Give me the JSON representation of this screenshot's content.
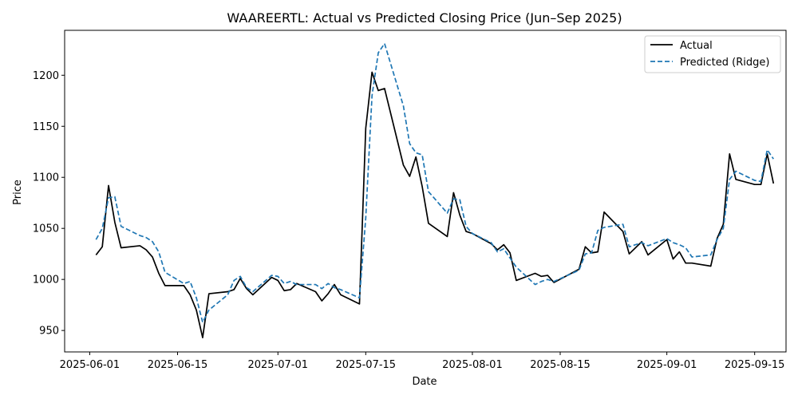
{
  "chart_data": {
    "type": "line",
    "title": "WAAREERTL: Actual vs Predicted Closing Price (Jun–Sep 2025)",
    "xlabel": "Date",
    "ylabel": "Price",
    "x_ticks": [
      "2025-06-01",
      "2025-06-15",
      "2025-07-01",
      "2025-07-15",
      "2025-08-01",
      "2025-08-15",
      "2025-09-01",
      "2025-09-15"
    ],
    "y_ticks": [
      950,
      1000,
      1050,
      1100,
      1150,
      1200
    ],
    "xlim": [
      "2025-05-28",
      "2025-09-20"
    ],
    "ylim": [
      929,
      1244
    ],
    "legend_position": "top-right",
    "grid": false,
    "series": [
      {
        "name": "Actual",
        "color": "#000000",
        "style": "solid",
        "points": [
          [
            "2025-06-02",
            1024
          ],
          [
            "2025-06-03",
            1032
          ],
          [
            "2025-06-04",
            1092
          ],
          [
            "2025-06-05",
            1056
          ],
          [
            "2025-06-06",
            1031
          ],
          [
            "2025-06-09",
            1033
          ],
          [
            "2025-06-10",
            1029
          ],
          [
            "2025-06-11",
            1022
          ],
          [
            "2025-06-12",
            1006
          ],
          [
            "2025-06-13",
            994
          ],
          [
            "2025-06-16",
            994
          ],
          [
            "2025-06-17",
            985
          ],
          [
            "2025-06-18",
            970
          ],
          [
            "2025-06-19",
            943
          ],
          [
            "2025-06-20",
            986
          ],
          [
            "2025-06-23",
            988
          ],
          [
            "2025-06-24",
            990
          ],
          [
            "2025-06-25",
            1001
          ],
          [
            "2025-06-26",
            991
          ],
          [
            "2025-06-27",
            985
          ],
          [
            "2025-06-30",
            1002
          ],
          [
            "2025-07-01",
            999
          ],
          [
            "2025-07-02",
            989
          ],
          [
            "2025-07-03",
            990
          ],
          [
            "2025-07-04",
            996
          ],
          [
            "2025-07-07",
            988
          ],
          [
            "2025-07-08",
            979
          ],
          [
            "2025-07-09",
            986
          ],
          [
            "2025-07-10",
            995
          ],
          [
            "2025-07-11",
            985
          ],
          [
            "2025-07-14",
            976
          ],
          [
            "2025-07-15",
            1148
          ],
          [
            "2025-07-16",
            1203
          ],
          [
            "2025-07-17",
            1185
          ],
          [
            "2025-07-18",
            1187
          ],
          [
            "2025-07-21",
            1112
          ],
          [
            "2025-07-22",
            1101
          ],
          [
            "2025-07-23",
            1120
          ],
          [
            "2025-07-24",
            1091
          ],
          [
            "2025-07-25",
            1055
          ],
          [
            "2025-07-28",
            1042
          ],
          [
            "2025-07-29",
            1085
          ],
          [
            "2025-07-30",
            1063
          ],
          [
            "2025-07-31",
            1047
          ],
          [
            "2025-08-01",
            1045
          ],
          [
            "2025-08-04",
            1035
          ],
          [
            "2025-08-05",
            1029
          ],
          [
            "2025-08-06",
            1034
          ],
          [
            "2025-08-07",
            1026
          ],
          [
            "2025-08-08",
            999
          ],
          [
            "2025-08-11",
            1006
          ],
          [
            "2025-08-12",
            1003
          ],
          [
            "2025-08-13",
            1004
          ],
          [
            "2025-08-14",
            997
          ],
          [
            "2025-08-18",
            1010
          ],
          [
            "2025-08-19",
            1032
          ],
          [
            "2025-08-20",
            1026
          ],
          [
            "2025-08-21",
            1027
          ],
          [
            "2025-08-22",
            1066
          ],
          [
            "2025-08-25",
            1047
          ],
          [
            "2025-08-26",
            1025
          ],
          [
            "2025-08-28",
            1037
          ],
          [
            "2025-08-29",
            1024
          ],
          [
            "2025-09-01",
            1039
          ],
          [
            "2025-09-02",
            1020
          ],
          [
            "2025-09-03",
            1027
          ],
          [
            "2025-09-04",
            1016
          ],
          [
            "2025-09-05",
            1016
          ],
          [
            "2025-09-08",
            1013
          ],
          [
            "2025-09-09",
            1040
          ],
          [
            "2025-09-10",
            1054
          ],
          [
            "2025-09-11",
            1123
          ],
          [
            "2025-09-12",
            1098
          ],
          [
            "2025-09-15",
            1093
          ],
          [
            "2025-09-16",
            1093
          ],
          [
            "2025-09-17",
            1123
          ],
          [
            "2025-09-18",
            1094
          ]
        ]
      },
      {
        "name": "Predicted (Ridge)",
        "color": "#1f77b4",
        "style": "dashed",
        "points": [
          [
            "2025-06-02",
            1039
          ],
          [
            "2025-06-03",
            1050
          ],
          [
            "2025-06-04",
            1080
          ],
          [
            "2025-06-05",
            1081
          ],
          [
            "2025-06-06",
            1052
          ],
          [
            "2025-06-09",
            1043
          ],
          [
            "2025-06-10",
            1041
          ],
          [
            "2025-06-11",
            1037
          ],
          [
            "2025-06-12",
            1027
          ],
          [
            "2025-06-13",
            1007
          ],
          [
            "2025-06-16",
            996
          ],
          [
            "2025-06-17",
            998
          ],
          [
            "2025-06-18",
            982
          ],
          [
            "2025-06-19",
            958
          ],
          [
            "2025-06-20",
            970
          ],
          [
            "2025-06-23",
            985
          ],
          [
            "2025-06-24",
            999
          ],
          [
            "2025-06-25",
            1003
          ],
          [
            "2025-06-26",
            992
          ],
          [
            "2025-06-27",
            988
          ],
          [
            "2025-06-30",
            1004
          ],
          [
            "2025-07-01",
            1003
          ],
          [
            "2025-07-02",
            996
          ],
          [
            "2025-07-03",
            998
          ],
          [
            "2025-07-04",
            995
          ],
          [
            "2025-07-07",
            995
          ],
          [
            "2025-07-08",
            991
          ],
          [
            "2025-07-09",
            996
          ],
          [
            "2025-07-10",
            992
          ],
          [
            "2025-07-11",
            990
          ],
          [
            "2025-07-14",
            982
          ],
          [
            "2025-07-15",
            1060
          ],
          [
            "2025-07-16",
            1180
          ],
          [
            "2025-07-17",
            1222
          ],
          [
            "2025-07-18",
            1231
          ],
          [
            "2025-07-21",
            1170
          ],
          [
            "2025-07-22",
            1133
          ],
          [
            "2025-07-23",
            1124
          ],
          [
            "2025-07-24",
            1122
          ],
          [
            "2025-07-25",
            1086
          ],
          [
            "2025-07-28",
            1065
          ],
          [
            "2025-07-29",
            1079
          ],
          [
            "2025-07-30",
            1078
          ],
          [
            "2025-07-31",
            1052
          ],
          [
            "2025-08-01",
            1045
          ],
          [
            "2025-08-04",
            1036
          ],
          [
            "2025-08-05",
            1027
          ],
          [
            "2025-08-06",
            1030
          ],
          [
            "2025-08-07",
            1021
          ],
          [
            "2025-08-08",
            1012
          ],
          [
            "2025-08-11",
            995
          ],
          [
            "2025-08-12",
            998
          ],
          [
            "2025-08-13",
            1000
          ],
          [
            "2025-08-14",
            998
          ],
          [
            "2025-08-18",
            1009
          ],
          [
            "2025-08-19",
            1025
          ],
          [
            "2025-08-20",
            1026
          ],
          [
            "2025-08-21",
            1048
          ],
          [
            "2025-08-22",
            1051
          ],
          [
            "2025-08-25",
            1054
          ],
          [
            "2025-08-26",
            1032
          ],
          [
            "2025-08-28",
            1036
          ],
          [
            "2025-08-29",
            1033
          ],
          [
            "2025-09-01",
            1040
          ],
          [
            "2025-09-02",
            1036
          ],
          [
            "2025-09-03",
            1034
          ],
          [
            "2025-09-04",
            1031
          ],
          [
            "2025-09-05",
            1022
          ],
          [
            "2025-09-08",
            1024
          ],
          [
            "2025-09-09",
            1039
          ],
          [
            "2025-09-10",
            1050
          ],
          [
            "2025-09-11",
            1098
          ],
          [
            "2025-09-12",
            1106
          ],
          [
            "2025-09-15",
            1097
          ],
          [
            "2025-09-16",
            1096
          ],
          [
            "2025-09-17",
            1127
          ],
          [
            "2025-09-18",
            1118
          ]
        ]
      }
    ]
  }
}
